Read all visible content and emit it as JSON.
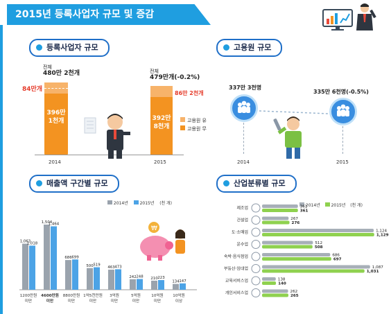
{
  "title": "2015년 등록사업자 규모 및 증감",
  "sections": {
    "registered": "등록사업자 규모",
    "employees": "고용원 규모",
    "sales": "매출액 구간별 규모",
    "industry": "산업분류별 규모"
  },
  "registered": {
    "y2014": {
      "year": "2014",
      "total_label": "전체",
      "total": "480만 2천개",
      "top": "84만개",
      "bottom": "396만 1천개"
    },
    "y2015": {
      "year": "2015",
      "total_label": "전체",
      "total": "479만개(-0.2%)",
      "top": "86만 2천개",
      "bottom": "392만 8천개"
    },
    "legend": [
      "고용원 유",
      "고용원 무"
    ]
  },
  "employees": {
    "y2014": {
      "year": "2014",
      "value": "337만 3천명"
    },
    "y2015": {
      "year": "2015",
      "value": "335만 6천명(-0.5%)"
    }
  },
  "legend_sales": {
    "a": "2014년",
    "b": "2015년",
    "unit": "(천 개)"
  },
  "legend_industry": {
    "a": "2014년",
    "b": "2015년",
    "unit": "(천 개)"
  },
  "colors": {
    "bar2014": "#9aa3ad",
    "bar2015": "#4ca3e6",
    "ind2014": "#a7afb8",
    "ind2015": "#8fd14f",
    "orange": "#f39321",
    "accent": "#1f9ee0"
  },
  "chart_data": [
    {
      "type": "bar",
      "title": "매출액 구간별 규모",
      "categories": [
        "1,200만 원 미만",
        "4,600만 원 미만",
        "8,800만 원 미만",
        "1억 5천만 원 미만",
        "3억 원 미만",
        "5억 원 미만",
        "10억 원 미만",
        "10억 원 이상"
      ],
      "category_lines": [
        [
          "1200만원",
          "미만"
        ],
        [
          "4600만원",
          "미만"
        ],
        [
          "8800만원",
          "미만"
        ],
        [
          "1억5천만원",
          "미만"
        ],
        [
          "3억원",
          "미만"
        ],
        [
          "5억원",
          "미만"
        ],
        [
          "10억원",
          "미만"
        ],
        [
          "10억원",
          "이상"
        ]
      ],
      "series": [
        {
          "name": "2014년",
          "values": [
            1063,
            1504,
            686,
            500,
            463,
            242,
            210,
            134
          ],
          "labels": [
            "1,063",
            "1,504",
            "686",
            "500",
            "463",
            "242",
            "210",
            "134"
          ]
        },
        {
          "name": "2015년",
          "values": [
            1018,
            1464,
            699,
            519,
            473,
            248,
            223,
            147
          ],
          "labels": [
            "1,018",
            "1,464",
            "699",
            "519",
            "473",
            "248",
            "223",
            "147"
          ]
        }
      ],
      "ylabel": "(천 개)",
      "ylim": [
        0,
        1600
      ]
    },
    {
      "type": "bar",
      "orientation": "horizontal",
      "title": "산업분류별 규모",
      "categories": [
        "제조업",
        "건설업",
        "도·소매업",
        "운수업",
        "숙박·음식점업",
        "부동산·임대업",
        "교육서비스업",
        "개인서비스업"
      ],
      "series": [
        {
          "name": "2014년",
          "values": [
            361,
            267,
            1124,
            512,
            686,
            1087,
            138,
            262
          ],
          "labels": [
            "361",
            "267",
            "1,124",
            "512",
            "686",
            "1,087",
            "138",
            "262"
          ]
        },
        {
          "name": "2015년",
          "values": [
            361,
            276,
            1129,
            508,
            697,
            1031,
            140,
            265
          ],
          "labels": [
            "361",
            "276",
            "1,129",
            "508",
            "697",
            "1,031",
            "140",
            "265"
          ]
        }
      ],
      "xlim": [
        0,
        1200
      ]
    }
  ]
}
